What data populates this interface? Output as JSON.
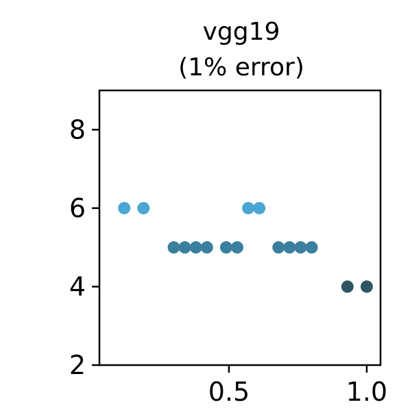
{
  "chart_data": {
    "type": "scatter",
    "title": "vgg19",
    "subtitle": "(1% error)",
    "xlabel": "",
    "ylabel": "",
    "xlim": [
      0.03,
      1.05
    ],
    "ylim": [
      2,
      9
    ],
    "x_ticks": [
      0.5,
      1.0
    ],
    "x_tick_labels": [
      "0.5",
      "1.0"
    ],
    "y_ticks": [
      2,
      4,
      6,
      8
    ],
    "y_tick_labels": [
      "2",
      "4",
      "6",
      "8"
    ],
    "grid": false,
    "points": [
      {
        "x": 0.12,
        "y": 6,
        "color": "#4aa6d2"
      },
      {
        "x": 0.19,
        "y": 6,
        "color": "#4aa6d2"
      },
      {
        "x": 0.57,
        "y": 6,
        "color": "#4aa6d2"
      },
      {
        "x": 0.61,
        "y": 6,
        "color": "#4aa6d2"
      },
      {
        "x": 0.3,
        "y": 5,
        "color": "#3a7f9d"
      },
      {
        "x": 0.34,
        "y": 5,
        "color": "#3a7f9d"
      },
      {
        "x": 0.38,
        "y": 5,
        "color": "#3a7f9d"
      },
      {
        "x": 0.42,
        "y": 5,
        "color": "#3a7f9d"
      },
      {
        "x": 0.49,
        "y": 5,
        "color": "#3a7f9d"
      },
      {
        "x": 0.53,
        "y": 5,
        "color": "#3a7f9d"
      },
      {
        "x": 0.68,
        "y": 5,
        "color": "#3a7f9d"
      },
      {
        "x": 0.72,
        "y": 5,
        "color": "#3a7f9d"
      },
      {
        "x": 0.76,
        "y": 5,
        "color": "#3a7f9d"
      },
      {
        "x": 0.8,
        "y": 5,
        "color": "#3a7f9d"
      },
      {
        "x": 0.93,
        "y": 4,
        "color": "#2e5564"
      },
      {
        "x": 1.0,
        "y": 4,
        "color": "#2e5564"
      }
    ]
  }
}
